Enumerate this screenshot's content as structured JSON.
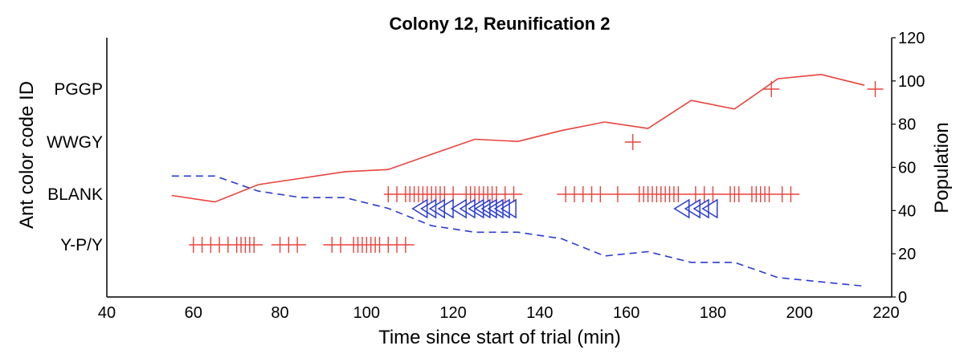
{
  "chart_data": {
    "type": "scatter",
    "title": "Colony 12, Reunification 2",
    "xlabel": "Time since start of trial (min)",
    "ylabel_left": "Ant color code ID",
    "ylabel_right": "Population",
    "xlim": [
      40,
      220
    ],
    "xticks": [
      40,
      60,
      80,
      100,
      120,
      140,
      160,
      180,
      200,
      220
    ],
    "ylim_right": [
      0,
      120
    ],
    "yticks_right": [
      0,
      20,
      40,
      60,
      80,
      100,
      120
    ],
    "categories": [
      "Y-P/Y",
      "BLANK",
      "WWGY",
      "PGGP"
    ],
    "event_series": [
      {
        "color": "#e8423c",
        "marker": "plus",
        "rows": [
          {
            "category": "Y-P/Y",
            "segments": [
              [
                59,
                76
              ],
              [
                78,
                86
              ],
              [
                90,
                111
              ]
            ],
            "x": [
              60,
              62,
              64,
              66,
              68,
              70,
              71,
              72,
              73,
              74,
              80,
              82,
              84,
              92,
              94,
              97,
              98,
              99,
              100,
              101,
              102,
              103,
              105,
              107,
              109
            ]
          },
          {
            "category": "BLANK",
            "segments": [
              [
                104,
                136
              ],
              [
                144,
                200
              ]
            ],
            "x": [
              105,
              107,
              109,
              110,
              111,
              112,
              113,
              114,
              115,
              116,
              117,
              118,
              120,
              123,
              124,
              125,
              126,
              127,
              128,
              129,
              130,
              132,
              134,
              146,
              148,
              150,
              152,
              154,
              158,
              163,
              164,
              165,
              166,
              167,
              168,
              169,
              170,
              171,
              172,
              176,
              178,
              180,
              184,
              185,
              186,
              189,
              190,
              191,
              192,
              193,
              196,
              198
            ]
          },
          {
            "category": "WWGY",
            "segments": [],
            "x": [
              161.5
            ]
          },
          {
            "category": "PGGP",
            "segments": [],
            "x": [
              193.5,
              217.5
            ]
          }
        ]
      },
      {
        "color": "#2b3bd4",
        "marker": "triangle-left",
        "rows": [
          {
            "category": "BLANK",
            "segments": [],
            "x": [
              112.5,
              114.5,
              116.5,
              118.5,
              121.5,
              123.5,
              125.5,
              127,
              128.5,
              130,
              131.5,
              133,
              173,
              175.5,
              177.5,
              179.5
            ]
          }
        ]
      }
    ],
    "series": [
      {
        "color": "#e8423c",
        "style": "solid",
        "x": [
          55,
          65,
          75,
          85,
          95,
          105,
          115,
          125,
          135,
          145,
          155,
          165,
          175,
          185,
          195,
          205,
          215
        ],
        "y": [
          47,
          44,
          52,
          55,
          58,
          59,
          66,
          73,
          72,
          77,
          81,
          78,
          91,
          87,
          101,
          103,
          98
        ]
      },
      {
        "color": "#2b3bd4",
        "style": "dashed",
        "x": [
          55,
          65,
          75,
          85,
          95,
          105,
          115,
          125,
          135,
          145,
          155,
          165,
          175,
          185,
          195,
          205,
          215
        ],
        "y": [
          56,
          56,
          49,
          46,
          46,
          41,
          33,
          30,
          30,
          27,
          19,
          21,
          16,
          16,
          9,
          7,
          5
        ]
      }
    ]
  }
}
